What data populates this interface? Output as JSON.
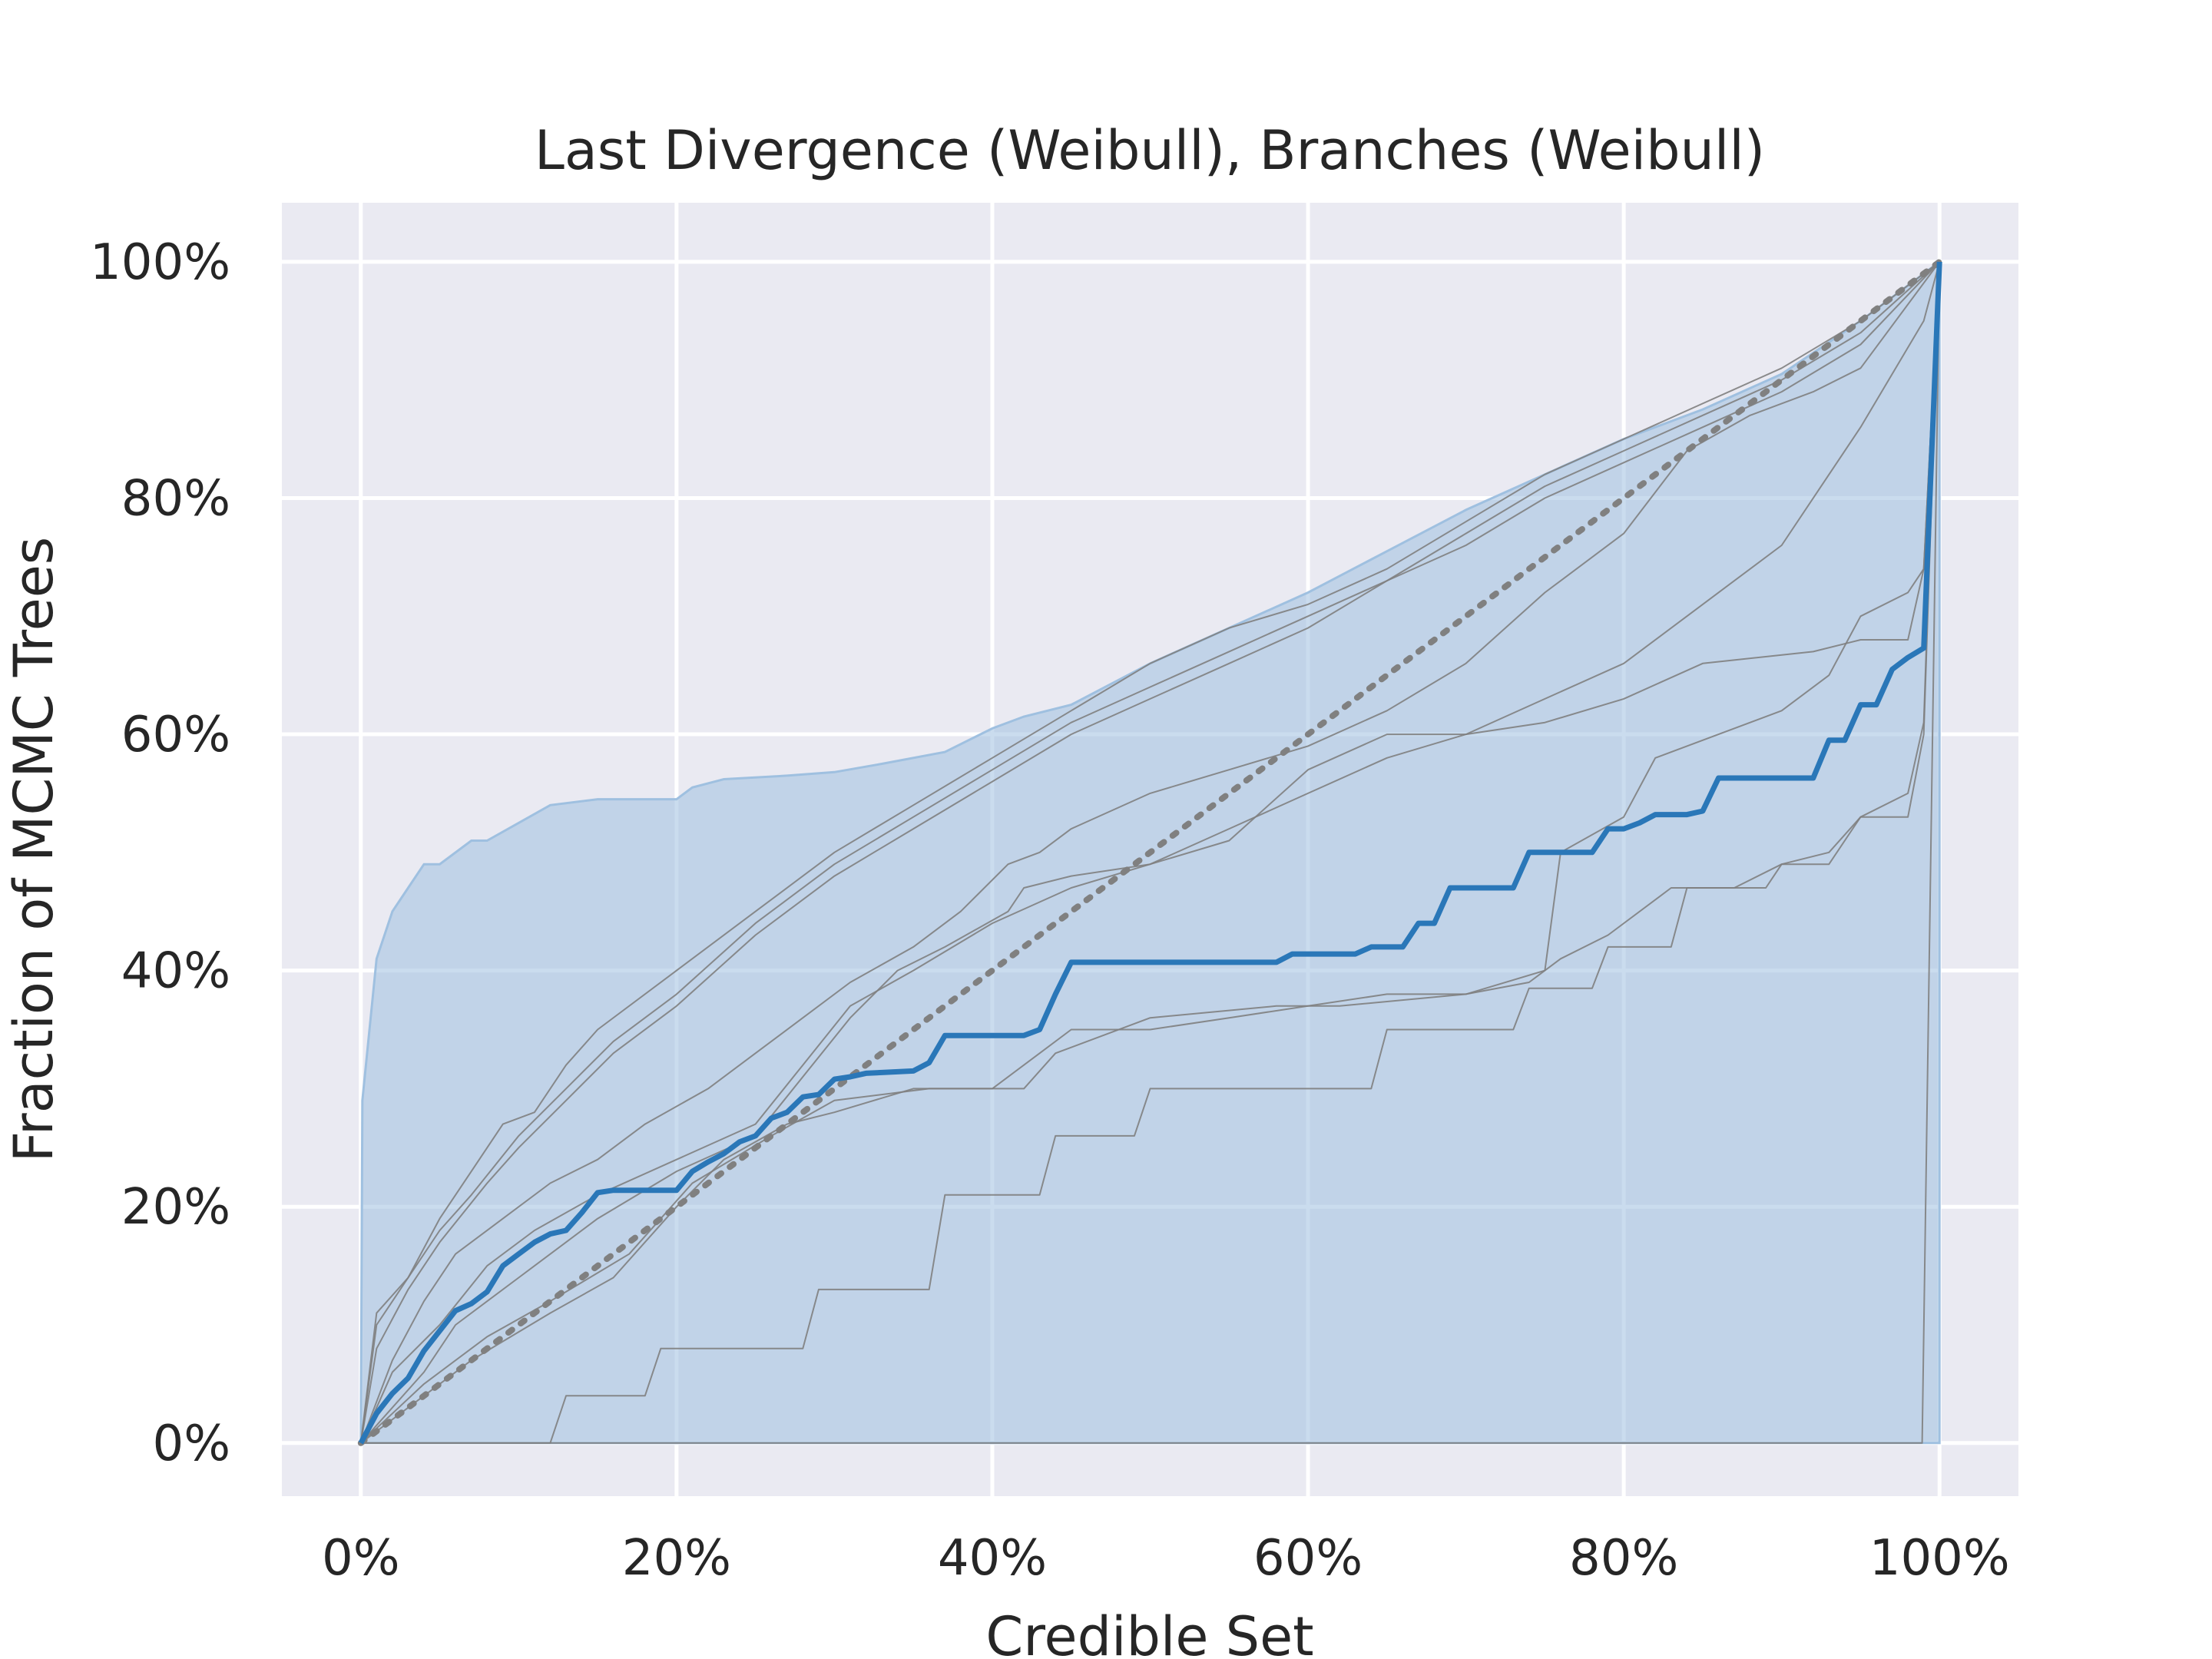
{
  "chart_data": {
    "type": "line",
    "title": "Last Divergence (Weibull), Branches (Weibull)",
    "xlabel": "Credible Set",
    "ylabel": "Fraction of MCMC Trees",
    "xlim": [
      -0.05,
      1.05
    ],
    "ylim": [
      -0.045,
      1.05
    ],
    "x_ticks": [
      0,
      0.2,
      0.4,
      0.6,
      0.8,
      1.0
    ],
    "y_ticks": [
      0,
      0.2,
      0.4,
      0.6,
      0.8,
      1.0
    ],
    "x_tick_labels": [
      "0%",
      "20%",
      "40%",
      "60%",
      "80%",
      "100%"
    ],
    "y_tick_labels": [
      "0%",
      "20%",
      "40%",
      "60%",
      "80%",
      "100%"
    ],
    "grid": true,
    "colors": {
      "background": "#eaeaf2",
      "grid": "#ffffff",
      "band": "#9fc0e0",
      "main": "#2a77b8",
      "replicate": "#7f7f7f",
      "reference": "#808080"
    },
    "band": {
      "x": [
        0,
        0.001,
        0.01,
        0.02,
        0.03,
        0.04,
        0.05,
        0.07,
        0.08,
        0.1,
        0.12,
        0.15,
        0.2,
        0.21,
        0.23,
        0.27,
        0.3,
        0.33,
        0.37,
        0.4,
        0.42,
        0.45,
        0.5,
        0.55,
        0.6,
        0.65,
        0.7,
        0.75,
        0.8,
        0.85,
        0.9,
        0.95,
        1.0
      ],
      "upper": [
        0,
        0.29,
        0.41,
        0.45,
        0.47,
        0.49,
        0.49,
        0.51,
        0.51,
        0.525,
        0.54,
        0.545,
        0.545,
        0.555,
        0.562,
        0.565,
        0.568,
        0.575,
        0.585,
        0.605,
        0.615,
        0.625,
        0.66,
        0.69,
        0.72,
        0.755,
        0.79,
        0.82,
        0.85,
        0.875,
        0.905,
        0.95,
        1.0
      ],
      "lower_y": 0
    },
    "series": [
      {
        "role": "main",
        "x": [
          0,
          0.01,
          0.02,
          0.03,
          0.04,
          0.05,
          0.06,
          0.07,
          0.08,
          0.09,
          0.1,
          0.11,
          0.12,
          0.13,
          0.14,
          0.15,
          0.16,
          0.2,
          0.21,
          0.22,
          0.23,
          0.24,
          0.25,
          0.26,
          0.27,
          0.28,
          0.29,
          0.3,
          0.31,
          0.32,
          0.35,
          0.36,
          0.37,
          0.42,
          0.43,
          0.44,
          0.45,
          0.58,
          0.59,
          0.63,
          0.64,
          0.66,
          0.67,
          0.68,
          0.69,
          0.73,
          0.74,
          0.78,
          0.79,
          0.8,
          0.81,
          0.82,
          0.84,
          0.85,
          0.86,
          0.92,
          0.93,
          0.94,
          0.95,
          0.96,
          0.97,
          0.98,
          0.99,
          1.0
        ],
        "y": [
          0,
          0.025,
          0.042,
          0.055,
          0.078,
          0.095,
          0.112,
          0.118,
          0.128,
          0.15,
          0.16,
          0.17,
          0.177,
          0.18,
          0.195,
          0.212,
          0.214,
          0.214,
          0.23,
          0.238,
          0.245,
          0.255,
          0.26,
          0.275,
          0.28,
          0.293,
          0.295,
          0.308,
          0.31,
          0.313,
          0.315,
          0.322,
          0.345,
          0.345,
          0.35,
          0.38,
          0.407,
          0.407,
          0.414,
          0.414,
          0.42,
          0.42,
          0.44,
          0.44,
          0.47,
          0.47,
          0.5,
          0.5,
          0.52,
          0.52,
          0.525,
          0.532,
          0.532,
          0.535,
          0.563,
          0.563,
          0.595,
          0.595,
          0.625,
          0.625,
          0.655,
          0.665,
          0.673,
          1.0
        ]
      },
      {
        "role": "replicate",
        "x": [
          0,
          0.01,
          0.03,
          0.05,
          0.07,
          0.1,
          0.13,
          0.16,
          0.2,
          0.25,
          0.3,
          0.35,
          0.4,
          0.45,
          0.5,
          0.55,
          0.6,
          0.65,
          0.7,
          0.75,
          0.8,
          0.85,
          0.9,
          0.95,
          1.0
        ],
        "y": [
          0,
          0.1,
          0.14,
          0.18,
          0.21,
          0.26,
          0.3,
          0.34,
          0.38,
          0.44,
          0.49,
          0.53,
          0.57,
          0.61,
          0.64,
          0.67,
          0.7,
          0.73,
          0.77,
          0.81,
          0.84,
          0.87,
          0.9,
          0.94,
          1.0
        ]
      },
      {
        "role": "replicate",
        "x": [
          0,
          0.01,
          0.03,
          0.05,
          0.08,
          0.1,
          0.13,
          0.16,
          0.2,
          0.25,
          0.3,
          0.35,
          0.4,
          0.45,
          0.5,
          0.55,
          0.6,
          0.65,
          0.7,
          0.75,
          0.8,
          0.85,
          0.9,
          0.95,
          1.0
        ],
        "y": [
          0,
          0.08,
          0.13,
          0.17,
          0.22,
          0.25,
          0.29,
          0.33,
          0.37,
          0.43,
          0.48,
          0.52,
          0.56,
          0.6,
          0.63,
          0.66,
          0.69,
          0.73,
          0.76,
          0.8,
          0.83,
          0.86,
          0.89,
          0.93,
          1.0
        ]
      },
      {
        "role": "replicate",
        "x": [
          0,
          0.01,
          0.03,
          0.05,
          0.07,
          0.09,
          0.11,
          0.13,
          0.15,
          0.2,
          0.25,
          0.3,
          0.35,
          0.4,
          0.45,
          0.5,
          0.55,
          0.6,
          0.65,
          0.7,
          0.75,
          0.8,
          0.85,
          0.9,
          0.95,
          1.0
        ],
        "y": [
          0,
          0.11,
          0.14,
          0.19,
          0.23,
          0.27,
          0.28,
          0.32,
          0.35,
          0.4,
          0.45,
          0.5,
          0.54,
          0.58,
          0.62,
          0.66,
          0.69,
          0.71,
          0.74,
          0.78,
          0.82,
          0.85,
          0.88,
          0.91,
          0.95,
          1.0
        ]
      },
      {
        "role": "replicate",
        "x": [
          0,
          0.02,
          0.04,
          0.06,
          0.09,
          0.12,
          0.15,
          0.18,
          0.22,
          0.25,
          0.28,
          0.31,
          0.35,
          0.38,
          0.41,
          0.43,
          0.45,
          0.5,
          0.55,
          0.6,
          0.65,
          0.7,
          0.75,
          0.8,
          0.84,
          0.88,
          0.92,
          0.95,
          1.0
        ],
        "y": [
          0,
          0.07,
          0.12,
          0.16,
          0.19,
          0.22,
          0.24,
          0.27,
          0.3,
          0.33,
          0.36,
          0.39,
          0.42,
          0.45,
          0.49,
          0.5,
          0.52,
          0.55,
          0.57,
          0.59,
          0.62,
          0.66,
          0.72,
          0.77,
          0.84,
          0.87,
          0.89,
          0.91,
          1.0
        ]
      },
      {
        "role": "replicate",
        "x": [
          0,
          0.02,
          0.05,
          0.08,
          0.11,
          0.15,
          0.2,
          0.25,
          0.28,
          0.31,
          0.35,
          0.4,
          0.45,
          0.5,
          0.55,
          0.6,
          0.65,
          0.7,
          0.75,
          0.8,
          0.85,
          0.9,
          0.95,
          0.99,
          1.0
        ],
        "y": [
          0,
          0.06,
          0.1,
          0.15,
          0.18,
          0.21,
          0.24,
          0.27,
          0.32,
          0.37,
          0.4,
          0.44,
          0.47,
          0.49,
          0.52,
          0.55,
          0.58,
          0.6,
          0.63,
          0.66,
          0.71,
          0.76,
          0.86,
          0.95,
          1.0
        ]
      },
      {
        "role": "replicate",
        "x": [
          0,
          0.04,
          0.06,
          0.1,
          0.15,
          0.2,
          0.25,
          0.28,
          0.31,
          0.34,
          0.37,
          0.41,
          0.42,
          0.45,
          0.5,
          0.55,
          0.6,
          0.65,
          0.7,
          0.75,
          0.8,
          0.85,
          0.92,
          0.95,
          0.98,
          0.99,
          1.0
        ],
        "y": [
          0,
          0.06,
          0.1,
          0.14,
          0.19,
          0.23,
          0.26,
          0.31,
          0.36,
          0.4,
          0.42,
          0.45,
          0.47,
          0.48,
          0.49,
          0.51,
          0.57,
          0.6,
          0.6,
          0.61,
          0.63,
          0.66,
          0.67,
          0.68,
          0.68,
          0.74,
          1.0
        ]
      },
      {
        "role": "replicate",
        "x": [
          0,
          0.04,
          0.08,
          0.12,
          0.17,
          0.21,
          0.26,
          0.3,
          0.36,
          0.42,
          0.44,
          0.5,
          0.58,
          0.62,
          0.7,
          0.75,
          0.76,
          0.8,
          0.82,
          0.86,
          0.9,
          0.93,
          0.95,
          0.98,
          0.99,
          1.0
        ],
        "y": [
          0,
          0.05,
          0.09,
          0.12,
          0.16,
          0.22,
          0.26,
          0.29,
          0.3,
          0.3,
          0.33,
          0.36,
          0.37,
          0.37,
          0.38,
          0.4,
          0.5,
          0.53,
          0.58,
          0.6,
          0.62,
          0.65,
          0.7,
          0.72,
          0.74,
          1.0
        ]
      },
      {
        "role": "replicate",
        "x": [
          0,
          0.04,
          0.07,
          0.12,
          0.16,
          0.2,
          0.23,
          0.27,
          0.3,
          0.35,
          0.4,
          0.43,
          0.45,
          0.5,
          0.55,
          0.6,
          0.65,
          0.7,
          0.74,
          0.76,
          0.79,
          0.83,
          0.87,
          0.9,
          0.93,
          0.95,
          0.98,
          0.99,
          1.0
        ],
        "y": [
          0,
          0.04,
          0.07,
          0.11,
          0.14,
          0.2,
          0.24,
          0.27,
          0.28,
          0.3,
          0.3,
          0.33,
          0.35,
          0.35,
          0.36,
          0.37,
          0.38,
          0.38,
          0.39,
          0.41,
          0.43,
          0.47,
          0.47,
          0.49,
          0.5,
          0.53,
          0.55,
          0.61,
          1.0
        ]
      },
      {
        "role": "replicate",
        "x": [
          0,
          0.04,
          0.12,
          0.13,
          0.18,
          0.19,
          0.28,
          0.29,
          0.36,
          0.37,
          0.43,
          0.44,
          0.49,
          0.5,
          0.64,
          0.65,
          0.73,
          0.74,
          0.78,
          0.79,
          0.83,
          0.84,
          0.89,
          0.9,
          0.93,
          0.95,
          0.98,
          0.99,
          1.0
        ],
        "y": [
          0,
          0,
          0,
          0.04,
          0.04,
          0.08,
          0.08,
          0.13,
          0.13,
          0.21,
          0.21,
          0.26,
          0.26,
          0.3,
          0.3,
          0.35,
          0.35,
          0.385,
          0.385,
          0.42,
          0.42,
          0.47,
          0.47,
          0.49,
          0.49,
          0.53,
          0.53,
          0.6,
          1.0
        ]
      },
      {
        "role": "replicate",
        "x": [
          0,
          0.5,
          0.98,
          0.989,
          1.0
        ],
        "y": [
          0,
          0,
          0,
          0,
          1.0
        ]
      },
      {
        "role": "reference",
        "x": [
          0,
          1.0
        ],
        "y": [
          0,
          1.0
        ]
      }
    ]
  }
}
